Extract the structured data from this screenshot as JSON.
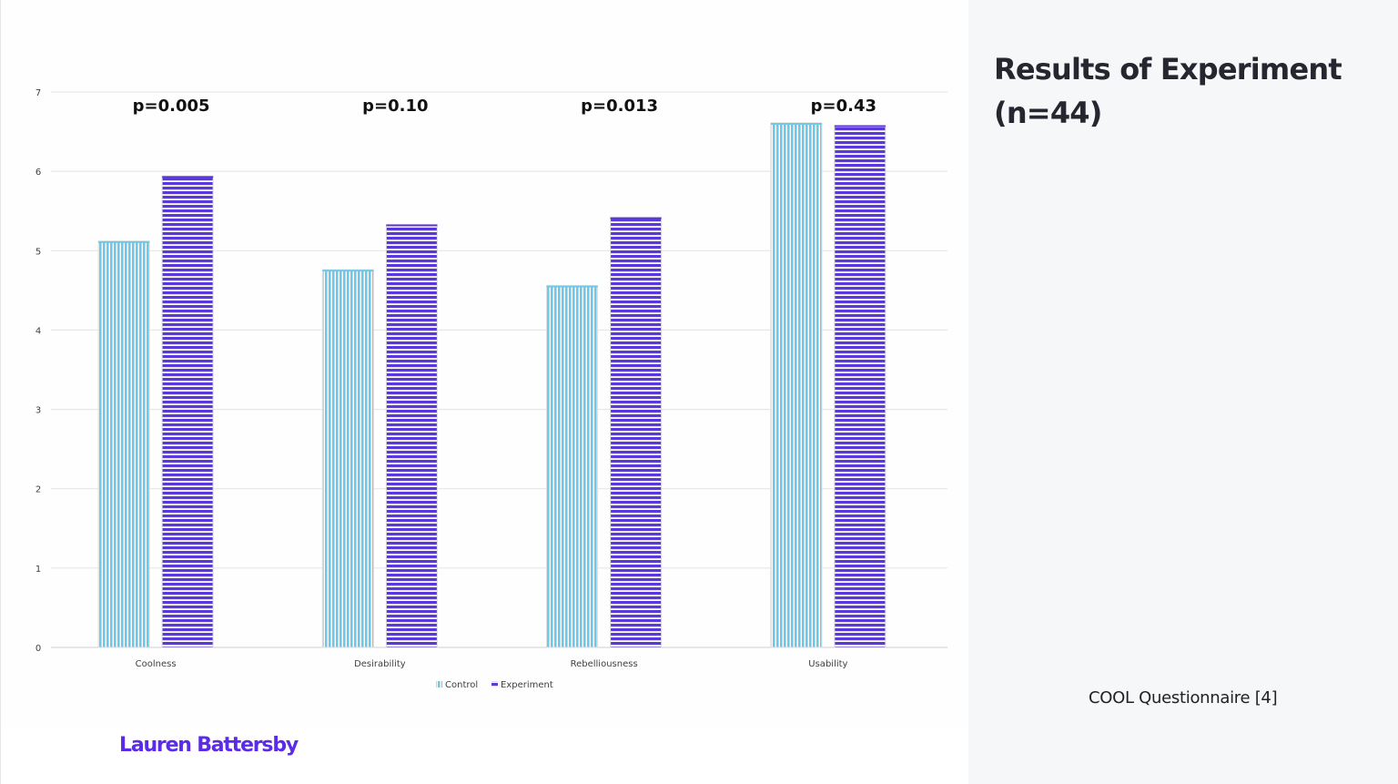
{
  "title": "Results of Experiment (n=44)",
  "source_note": "COOL Questionnaire [4]",
  "author": "Lauren Battersby",
  "colors": {
    "control": "#6ec8e8",
    "experiment": "#5a38d9",
    "author": "#5b2be8",
    "side_panel": "#f6f7f9"
  },
  "chart_data": {
    "type": "bar",
    "categories": [
      "Coolness",
      "Desirability",
      "Rebelliousness",
      "Usability"
    ],
    "series": [
      {
        "name": "Control",
        "values": [
          5.12,
          4.76,
          4.56,
          6.61
        ],
        "pattern": "vertical-stripes"
      },
      {
        "name": "Experiment",
        "values": [
          5.94,
          5.33,
          5.42,
          6.58
        ],
        "pattern": "horizontal-stripes"
      }
    ],
    "annotations": [
      "p=0.005",
      "p=0.10",
      "p=0.013",
      "p=0.43"
    ],
    "ylim": [
      0,
      7
    ],
    "yticks": [
      "0",
      "1",
      "2",
      "3",
      "4",
      "5",
      "6",
      "7"
    ],
    "title": "",
    "xlabel": "",
    "ylabel": "",
    "grid": true,
    "legend": "bottom-center"
  }
}
